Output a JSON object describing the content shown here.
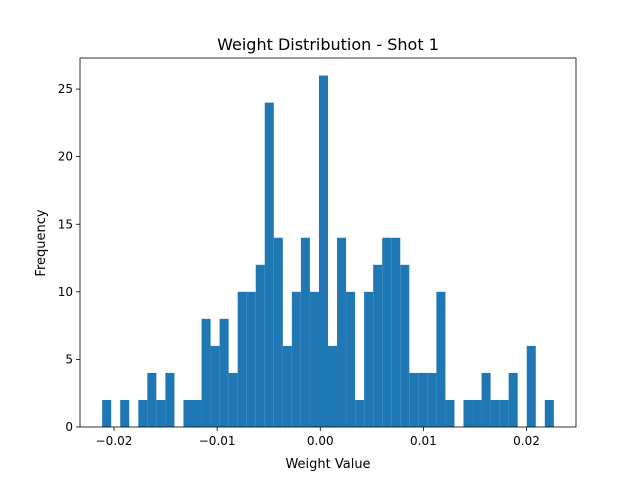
{
  "chart_data": {
    "type": "bar",
    "title": "Weight Distribution - Shot 1",
    "xlabel": "Weight Value",
    "ylabel": "Frequency",
    "xlim": [
      -0.0233,
      0.0248
    ],
    "ylim": [
      0,
      27.3
    ],
    "xticks": [
      -0.02,
      -0.01,
      0.0,
      0.01,
      0.02
    ],
    "xtick_labels": [
      "−0.02",
      "−0.01",
      "0.00",
      "0.01",
      "0.02"
    ],
    "yticks": [
      0,
      5,
      10,
      15,
      20,
      25
    ],
    "ytick_labels": [
      "0",
      "5",
      "10",
      "15",
      "20",
      "25"
    ],
    "bin_start": -0.02115,
    "bin_width": 0.000876,
    "values": [
      2,
      0,
      2,
      0,
      2,
      4,
      2,
      4,
      0,
      2,
      2,
      8,
      6,
      8,
      4,
      10,
      10,
      12,
      24,
      14,
      6,
      10,
      14,
      10,
      26,
      6,
      14,
      10,
      2,
      10,
      12,
      14,
      14,
      12,
      4,
      4,
      4,
      10,
      2,
      0,
      2,
      2,
      4,
      2,
      2,
      4,
      0,
      6,
      0,
      2
    ],
    "bar_color": "#1f77b4",
    "grid": false
  }
}
